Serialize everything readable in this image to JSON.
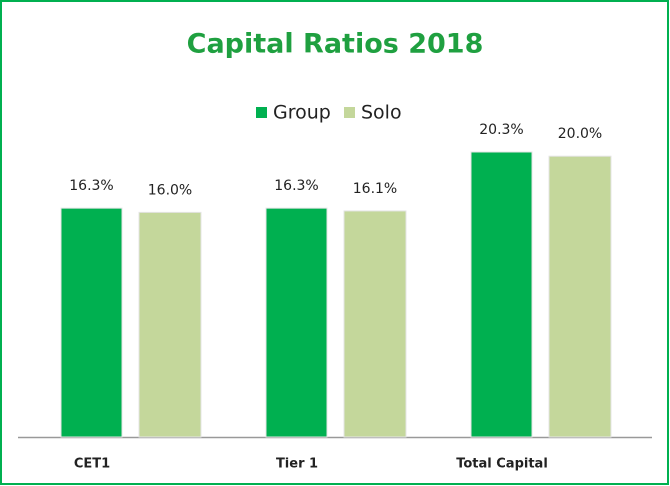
{
  "chart_data": {
    "type": "bar",
    "title": "Capital Ratios 2018",
    "categories": [
      "CET1",
      "Tier 1",
      "Total Capital"
    ],
    "series": [
      {
        "name": "Group",
        "color": "#00b050",
        "values": [
          16.3,
          16.3,
          20.3
        ],
        "value_labels": [
          "16.3%",
          "16.3%",
          "20.3%"
        ]
      },
      {
        "name": "Solo",
        "color": "#c4d79b",
        "values": [
          16.0,
          16.1,
          20.0
        ],
        "value_labels": [
          "16.0%",
          "16.1%",
          "20.0%"
        ]
      }
    ],
    "legend": "top"
  }
}
